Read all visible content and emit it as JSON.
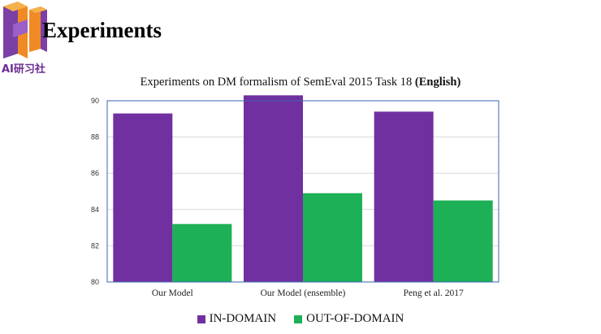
{
  "slide": {
    "heading": "Experiments",
    "logo_text": "AI研习社"
  },
  "chart_data": {
    "type": "bar",
    "title": "Experiments on DM formalism of SemEval 2015 Task 18",
    "title_bold_suffix": "(English)",
    "categories": [
      "Our Model",
      "Our Model (ensemble)",
      "Peng et al. 2017"
    ],
    "series": [
      {
        "name": "IN-DOMAIN",
        "color": "#7030a0",
        "values": [
          89.3,
          90.3,
          89.4
        ]
      },
      {
        "name": "OUT-OF-DOMAIN",
        "color": "#1db056",
        "values": [
          83.2,
          84.9,
          84.5
        ]
      }
    ],
    "ylim": [
      80,
      90
    ],
    "yticks": [
      80,
      82,
      84,
      86,
      88,
      90
    ],
    "xlabel": "",
    "ylabel": "",
    "grid": true,
    "legend_position": "bottom"
  }
}
